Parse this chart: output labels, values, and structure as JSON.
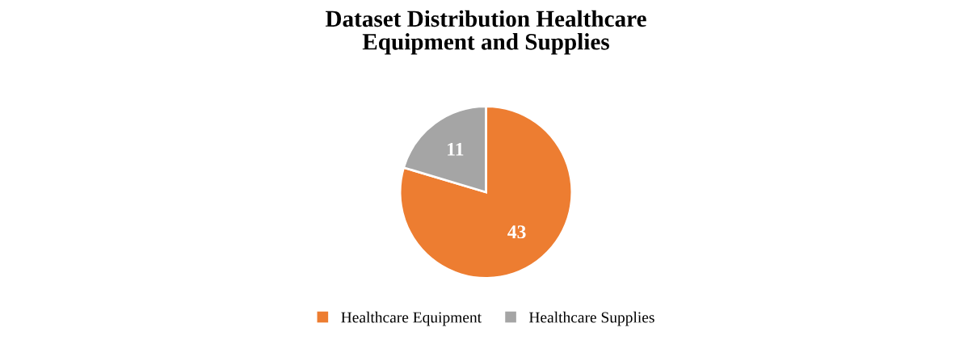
{
  "chart_data": {
    "type": "pie",
    "title": "Dataset Distribution Healthcare\nEquipment and Supplies",
    "categories": [
      "Healthcare Equipment",
      "Healthcare Supplies"
    ],
    "values": [
      43,
      11
    ],
    "colors": [
      "#ed7d31",
      "#a5a5a5"
    ],
    "data_labels": true,
    "legend": "bottom"
  }
}
